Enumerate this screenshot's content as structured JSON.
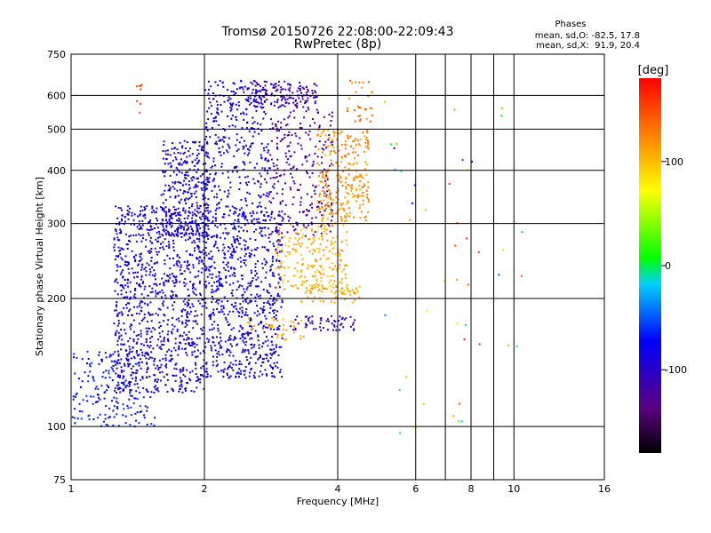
{
  "chart_data": {
    "type": "scatter",
    "title": "Tromsø 20150726 22:08:00-22:09:43",
    "subtitle": "RwPretec (8p)",
    "xlabel": "Frequency [MHz]",
    "ylabel": "Stationary phase Virtual Height [km]",
    "x_scale": "log",
    "y_scale": "log",
    "xlim": [
      1,
      16
    ],
    "ylim": [
      75,
      750
    ],
    "x_ticks": [
      1,
      2,
      4,
      6,
      8,
      10,
      16
    ],
    "y_ticks": [
      75,
      100,
      200,
      300,
      400,
      500,
      600,
      750
    ],
    "x_minor_gridlines": [
      7,
      9
    ],
    "grid": true,
    "phase_box": {
      "title": "Phases",
      "line_o": "mean, sd,O: -82.5, 17.8",
      "line_x": "mean, sd,X:  91.9, 20.4"
    },
    "colorbar": {
      "label": "[deg]",
      "range": [
        -180,
        180
      ],
      "ticks": [
        100,
        0,
        -100
      ],
      "scale": "black-purple-blue-cyan-green-yellow-orange-red"
    },
    "point_clusters": [
      {
        "f": [
          1.0,
          1.55
        ],
        "h": [
          100,
          150
        ],
        "phase": [
          -85,
          -55
        ],
        "n": 200
      },
      {
        "f": [
          1.25,
          2.0
        ],
        "h": [
          120,
          330
        ],
        "phase": [
          -105,
          -75
        ],
        "n": 1000
      },
      {
        "f": [
          1.6,
          2.05
        ],
        "h": [
          280,
          470
        ],
        "phase": [
          -110,
          -70
        ],
        "n": 330
      },
      {
        "f": [
          2.0,
          3.0
        ],
        "h": [
          130,
          320
        ],
        "phase": [
          -100,
          -70
        ],
        "n": 750
      },
      {
        "f": [
          2.0,
          2.8
        ],
        "h": [
          300,
          650
        ],
        "phase": [
          -100,
          -70
        ],
        "n": 350
      },
      {
        "f": [
          2.5,
          3.6
        ],
        "h": [
          560,
          650
        ],
        "phase": [
          -125,
          -95
        ],
        "n": 160
      },
      {
        "f": [
          2.8,
          3.9
        ],
        "h": [
          280,
          560
        ],
        "phase": [
          -135,
          -105
        ],
        "n": 260
      },
      {
        "f": [
          2.9,
          4.2
        ],
        "h": [
          210,
          300
        ],
        "phase": [
          90,
          120
        ],
        "n": 220
      },
      {
        "f": [
          3.6,
          4.7
        ],
        "h": [
          300,
          500
        ],
        "phase": [
          100,
          135
        ],
        "n": 280
      },
      {
        "f": [
          3.3,
          4.5
        ],
        "h": [
          195,
          215
        ],
        "phase": [
          95,
          125
        ],
        "n": 60
      },
      {
        "f": [
          2.5,
          3.4
        ],
        "h": [
          160,
          180
        ],
        "phase": [
          95,
          120
        ],
        "n": 40
      },
      {
        "f": [
          3.1,
          4.4
        ],
        "h": [
          168,
          182
        ],
        "phase": [
          -120,
          -95
        ],
        "n": 60
      },
      {
        "f": [
          4.2,
          4.8
        ],
        "h": [
          520,
          660
        ],
        "phase": [
          110,
          150
        ],
        "n": 30
      },
      {
        "f": [
          1.4,
          1.45
        ],
        "h": [
          540,
          640
        ],
        "phase": [
          140,
          160
        ],
        "n": 8
      },
      {
        "f": [
          5.0,
          10.5
        ],
        "h": [
          90,
          600
        ],
        "phase": [
          -130,
          170
        ],
        "n": 45
      }
    ]
  }
}
